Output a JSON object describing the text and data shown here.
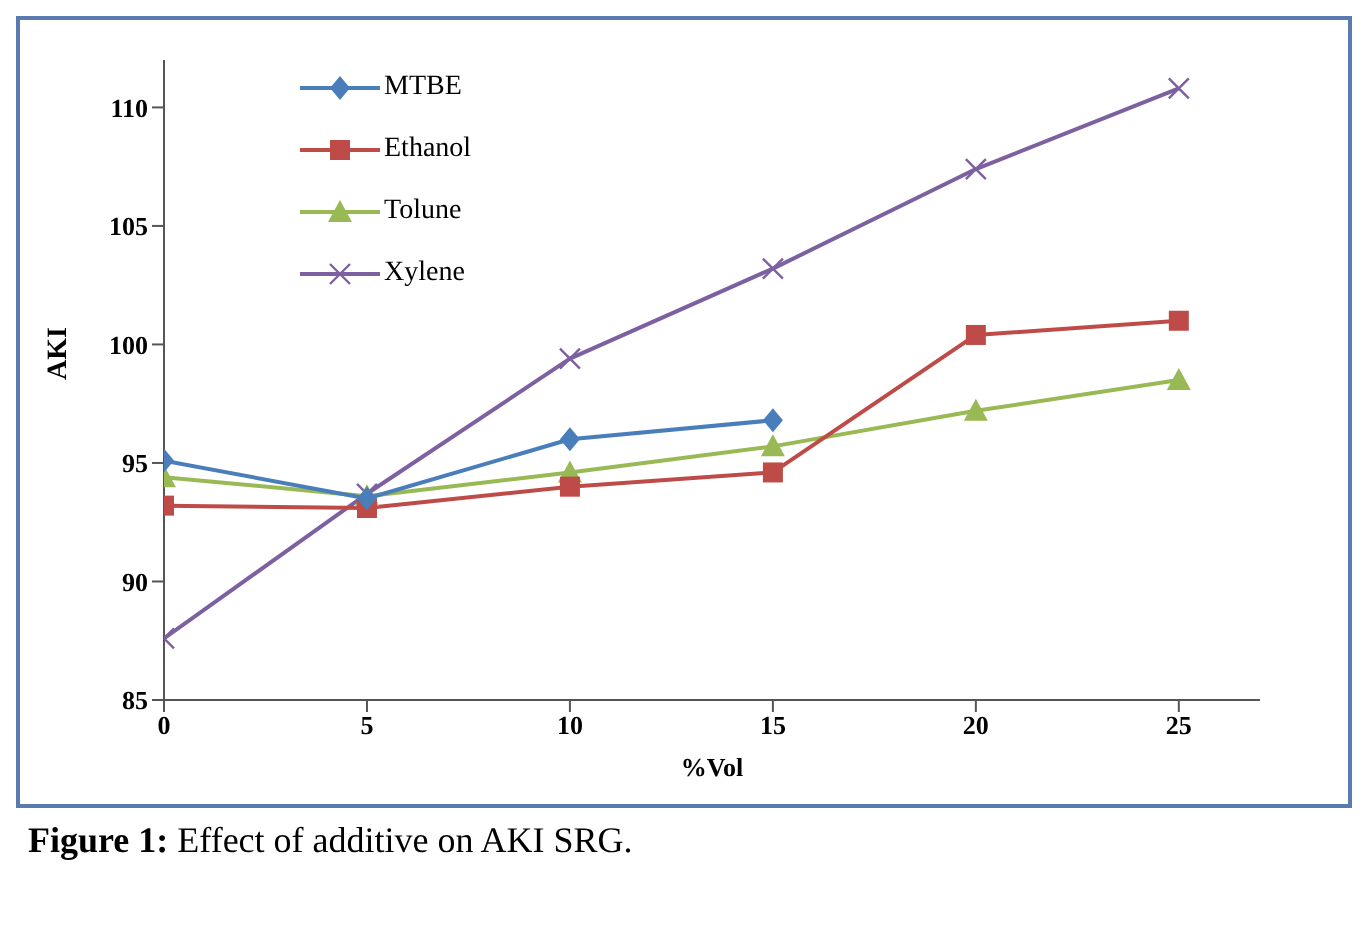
{
  "chart_data": {
    "type": "line",
    "xlabel": "%Vol",
    "ylabel": "AKI",
    "annotations": [
      "Figure 1: Effect of additive on AKI SRG."
    ],
    "x": [
      0,
      5,
      10,
      15,
      20,
      25
    ],
    "xlim": [
      0,
      27
    ],
    "xticks": [
      0,
      5,
      10,
      15,
      20,
      25
    ],
    "ylim": [
      85,
      112
    ],
    "yticks": [
      85,
      90,
      95,
      100,
      105,
      110
    ],
    "grid": false,
    "legend": "top left",
    "line_style": "solid",
    "series": [
      {
        "name": "MTBE",
        "color": "#4a7ebb",
        "marker": "diamond",
        "values": [
          95.1,
          93.5,
          96.0,
          96.8,
          null,
          null
        ]
      },
      {
        "name": "Ethanol",
        "color": "#be4b48",
        "marker": "square",
        "values": [
          93.2,
          93.1,
          94.0,
          94.6,
          100.4,
          101.0
        ]
      },
      {
        "name": "Tolune",
        "color": "#98b954",
        "marker": "triangle",
        "values": [
          94.4,
          93.6,
          94.6,
          95.7,
          97.2,
          98.5
        ]
      },
      {
        "name": "Xylene",
        "color": "#7d60a0",
        "marker": "cross",
        "values": [
          87.6,
          93.7,
          99.4,
          103.2,
          107.4,
          110.8
        ]
      }
    ]
  }
}
